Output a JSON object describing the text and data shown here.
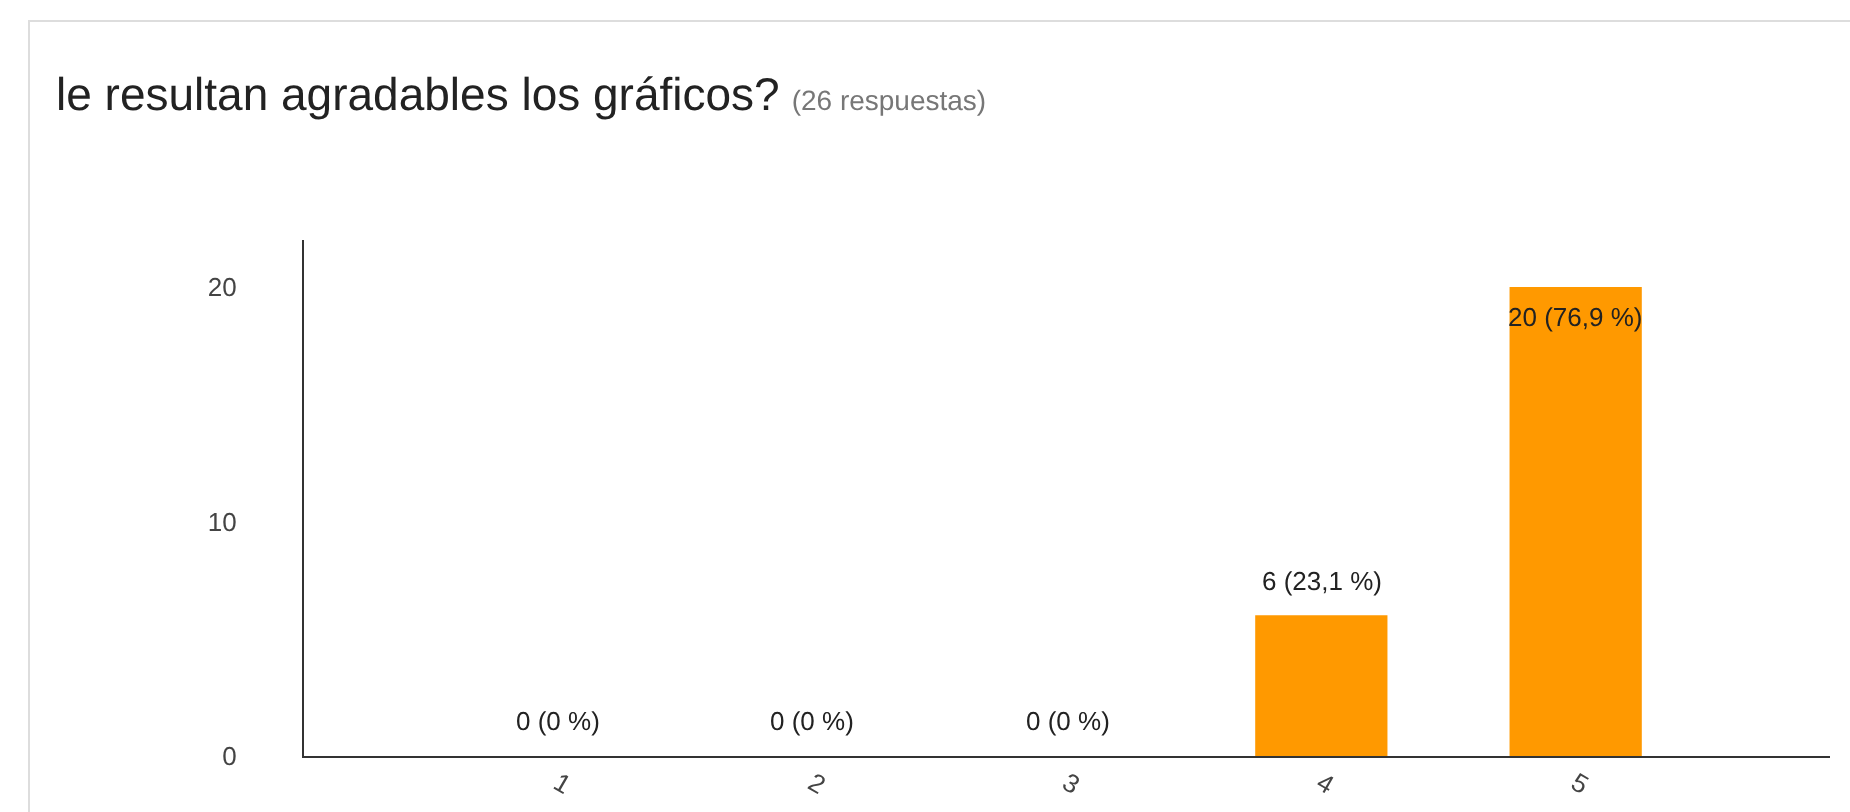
{
  "chart_data": {
    "type": "bar",
    "title": "le resultan agradables los gráficos?",
    "subtitle": "(26 respuestas)",
    "categories": [
      "1",
      "2",
      "3",
      "4",
      "5"
    ],
    "values": [
      0,
      0,
      0,
      6,
      20
    ],
    "value_labels": [
      "0 (0 %)",
      "0 (0 %)",
      "0 (0 %)",
      "6 (23,1 %)",
      "20 (76,9 %)"
    ],
    "color": "#ff9900",
    "ylim": [
      0,
      22
    ],
    "yticks": [
      0,
      10,
      20
    ],
    "grid": false
  }
}
